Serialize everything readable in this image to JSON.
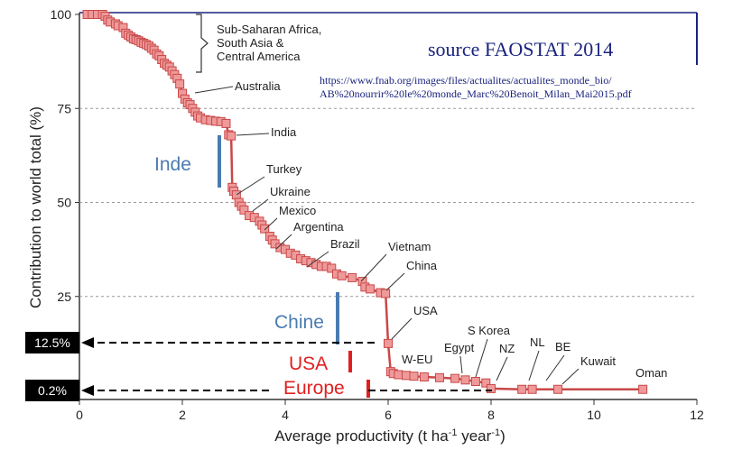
{
  "chart_data": {
    "type": "line",
    "title": "",
    "xlabel": "Average productivity (t ha",
    "xlabel_sup1": "-1",
    "xlabel_mid": " year",
    "xlabel_sup2": "-1",
    "xlabel_end": ")",
    "ylabel": "Contribution to world total (%)",
    "xlim": [
      0,
      12
    ],
    "ylim": [
      0,
      100
    ],
    "x_ticks": [
      0,
      2,
      4,
      6,
      8,
      10,
      12
    ],
    "y_ticks": [
      25,
      50,
      75,
      100
    ],
    "grid": "horizontal dashed at 25, 50, 75",
    "series": [
      {
        "color": "#c94848",
        "points": [
          [
            0.15,
            100
          ],
          [
            0.25,
            100
          ],
          [
            0.35,
            100
          ],
          [
            0.45,
            100
          ],
          [
            0.5,
            99.5
          ],
          [
            0.55,
            98.5
          ],
          [
            0.6,
            98
          ],
          [
            0.7,
            97.5
          ],
          [
            0.75,
            97
          ],
          [
            0.85,
            96.5
          ],
          [
            0.9,
            95
          ],
          [
            0.95,
            94.5
          ],
          [
            1.0,
            94
          ],
          [
            1.05,
            93.5
          ],
          [
            1.1,
            93.3
          ],
          [
            1.15,
            93
          ],
          [
            1.2,
            92.6
          ],
          [
            1.25,
            92.3
          ],
          [
            1.3,
            92
          ],
          [
            1.35,
            91.6
          ],
          [
            1.4,
            91
          ],
          [
            1.45,
            90.5
          ],
          [
            1.5,
            89.5
          ],
          [
            1.55,
            89
          ],
          [
            1.6,
            88
          ],
          [
            1.65,
            87
          ],
          [
            1.7,
            86.5
          ],
          [
            1.75,
            86
          ],
          [
            1.8,
            85
          ],
          [
            1.85,
            84
          ],
          [
            1.9,
            83
          ],
          [
            1.95,
            81.5
          ],
          [
            2.0,
            79
          ],
          [
            2.05,
            77.5
          ],
          [
            2.1,
            76.5
          ],
          [
            2.15,
            76
          ],
          [
            2.2,
            75
          ],
          [
            2.25,
            74
          ],
          [
            2.3,
            73
          ],
          [
            2.35,
            72.5
          ],
          [
            2.45,
            72
          ],
          [
            2.55,
            71.8
          ],
          [
            2.65,
            71.6
          ],
          [
            2.75,
            71.5
          ],
          [
            2.85,
            71
          ],
          [
            2.9,
            68
          ],
          [
            2.95,
            67.7
          ],
          [
            2.97,
            54
          ],
          [
            3.0,
            53
          ],
          [
            3.05,
            52
          ],
          [
            3.1,
            50
          ],
          [
            3.15,
            49
          ],
          [
            3.2,
            48
          ],
          [
            3.3,
            46.5
          ],
          [
            3.4,
            46
          ],
          [
            3.5,
            45
          ],
          [
            3.55,
            44
          ],
          [
            3.6,
            43
          ],
          [
            3.7,
            41
          ],
          [
            3.75,
            40
          ],
          [
            3.8,
            39
          ],
          [
            3.9,
            38
          ],
          [
            4.0,
            37.5
          ],
          [
            4.1,
            36.5
          ],
          [
            4.2,
            36
          ],
          [
            4.3,
            35
          ],
          [
            4.4,
            34.5
          ],
          [
            4.5,
            34
          ],
          [
            4.6,
            33.5
          ],
          [
            4.7,
            33
          ],
          [
            4.8,
            33
          ],
          [
            4.9,
            32.5
          ],
          [
            5.0,
            31
          ],
          [
            5.1,
            30.5
          ],
          [
            5.3,
            30
          ],
          [
            5.5,
            29
          ],
          [
            5.55,
            27.5
          ],
          [
            5.65,
            27
          ],
          [
            5.85,
            26
          ],
          [
            5.95,
            25.8
          ],
          [
            6.0,
            12.5
          ],
          [
            6.05,
            5
          ],
          [
            6.1,
            4.5
          ],
          [
            6.2,
            4.2
          ],
          [
            6.35,
            4
          ],
          [
            6.5,
            3.8
          ],
          [
            6.7,
            3.6
          ],
          [
            7.0,
            3.4
          ],
          [
            7.3,
            3.2
          ],
          [
            7.5,
            2.8
          ],
          [
            7.7,
            2.4
          ],
          [
            7.9,
            2
          ],
          [
            8.0,
            0.5
          ],
          [
            8.6,
            0.3
          ],
          [
            8.8,
            0.3
          ],
          [
            9.3,
            0.3
          ],
          [
            10.95,
            0.3
          ]
        ]
      }
    ],
    "annotations": [
      {
        "label": "Sub-Saharan Africa,",
        "line2": "South Asia &",
        "line3": "Central America"
      },
      {
        "label": "Australia"
      },
      {
        "label": "India"
      },
      {
        "label": "Turkey"
      },
      {
        "label": "Ukraine"
      },
      {
        "label": "Mexico"
      },
      {
        "label": "Argentina"
      },
      {
        "label": "Brazil"
      },
      {
        "label": "Vietnam"
      },
      {
        "label": "China"
      },
      {
        "label": "USA"
      },
      {
        "label": "W-EU"
      },
      {
        "label": "Egypt"
      },
      {
        "label": "S Korea"
      },
      {
        "label": "NZ"
      },
      {
        "label": "NL"
      },
      {
        "label": "BE"
      },
      {
        "label": "Kuwait"
      },
      {
        "label": "Oman"
      }
    ],
    "overlay": {
      "source_title": "source FAOSTAT 2014",
      "url_line1": "https://www.fnab.org/images/files/actualites/actualites_monde_bio/",
      "url_line2": "AB%20nourrir%20le%20monde_Marc%20Benoit_Milan_Mai2015.pdf",
      "inde_label": "Inde",
      "chine_label": "Chine",
      "usa_label": "USA",
      "europe_label": "Europe",
      "box_12": "12.5%",
      "box_02": "0.2%",
      "blue_color": "#4a7bb0",
      "red_color": "#e02020"
    }
  }
}
